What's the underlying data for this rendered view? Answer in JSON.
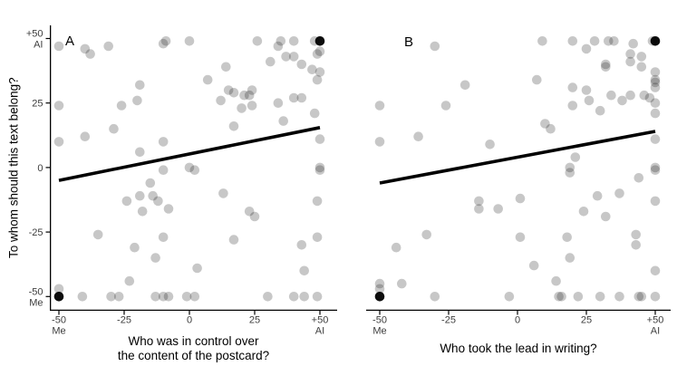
{
  "figure": {
    "background": "#ffffff",
    "text_color": "#000000",
    "tick_label_color": "#3d3d3d"
  },
  "chart_data": [
    {
      "type": "scatter",
      "panel_label": "A",
      "xlabel_lines": [
        "Who was in control over",
        "the content of the postcard?"
      ],
      "ylabel": "To whom should this text belong?",
      "xlim": [
        -55,
        56
      ],
      "ylim": [
        -55,
        56
      ],
      "grid": false,
      "y_axis_line": true,
      "x_ticks": [
        {
          "value": -50,
          "lines": [
            "-50",
            "Me"
          ]
        },
        {
          "value": -25,
          "lines": [
            "-25"
          ]
        },
        {
          "value": 0,
          "lines": [
            "0"
          ]
        },
        {
          "value": 25,
          "lines": [
            "25"
          ]
        },
        {
          "value": 50,
          "lines": [
            "+50",
            "AI"
          ]
        }
      ],
      "y_ticks": [
        {
          "value": 50,
          "lines": [
            "+50",
            "AI"
          ]
        },
        {
          "value": 25,
          "lines": [
            "25"
          ]
        },
        {
          "value": 0,
          "lines": [
            "0"
          ]
        },
        {
          "value": -25,
          "lines": [
            "-25"
          ]
        },
        {
          "value": -50,
          "lines": [
            "-50",
            "Me"
          ]
        }
      ],
      "point_color": "#000000",
      "point_opacity": 0.22,
      "point_radius": 5.3,
      "trend_line": {
        "x1": -50,
        "y1": -5,
        "x2": 50,
        "y2": 15.5,
        "color": "#000000",
        "width": 3.6
      },
      "points": [
        [
          -50,
          47
        ],
        [
          -40,
          46
        ],
        [
          -38,
          44
        ],
        [
          -31,
          47
        ],
        [
          -10,
          48
        ],
        [
          -9,
          49
        ],
        [
          0,
          49
        ],
        [
          26,
          49
        ],
        [
          35,
          49
        ],
        [
          40,
          49
        ],
        [
          48,
          49
        ],
        [
          49,
          44
        ],
        [
          50,
          45
        ],
        [
          34,
          47
        ],
        [
          37,
          43
        ],
        [
          31,
          41
        ],
        [
          40,
          43
        ],
        [
          43,
          40
        ],
        [
          47,
          38
        ],
        [
          50,
          37
        ],
        [
          49,
          34
        ],
        [
          -19,
          32
        ],
        [
          -50,
          24
        ],
        [
          -26,
          24
        ],
        [
          -20,
          26
        ],
        [
          -29,
          15
        ],
        [
          -40,
          12
        ],
        [
          -50,
          10
        ],
        [
          -10,
          10
        ],
        [
          14,
          39
        ],
        [
          7,
          34
        ],
        [
          15,
          30
        ],
        [
          17,
          29
        ],
        [
          12,
          26
        ],
        [
          21,
          28
        ],
        [
          23,
          28
        ],
        [
          24,
          30
        ],
        [
          20,
          23
        ],
        [
          24,
          24
        ],
        [
          40,
          27
        ],
        [
          43,
          27
        ],
        [
          34,
          25
        ],
        [
          48,
          21
        ],
        [
          17,
          16
        ],
        [
          36,
          18
        ],
        [
          -19,
          6
        ],
        [
          -10,
          -1
        ],
        [
          0,
          0
        ],
        [
          2,
          -1
        ],
        [
          50,
          11
        ],
        [
          50,
          0
        ],
        [
          50,
          -1
        ],
        [
          -15,
          -6
        ],
        [
          13,
          -10
        ],
        [
          -14,
          -11
        ],
        [
          -12,
          -13
        ],
        [
          -8,
          -16
        ],
        [
          -24,
          -13
        ],
        [
          -18,
          -17
        ],
        [
          -19,
          -11
        ],
        [
          -35,
          -26
        ],
        [
          -10,
          -27
        ],
        [
          -21,
          -31
        ],
        [
          -13,
          -35
        ],
        [
          49,
          -13
        ],
        [
          23,
          -17
        ],
        [
          25,
          -19
        ],
        [
          17,
          -28
        ],
        [
          49,
          -27
        ],
        [
          43,
          -30
        ],
        [
          3,
          -39
        ],
        [
          44,
          -40
        ],
        [
          -23,
          -44
        ],
        [
          -50,
          -47
        ],
        [
          -41,
          -50
        ],
        [
          -30,
          -50
        ],
        [
          -27,
          -50
        ],
        [
          -13,
          -50
        ],
        [
          -10,
          -50
        ],
        [
          -8,
          -50
        ],
        [
          -1,
          -50
        ],
        [
          2,
          -50
        ],
        [
          30,
          -50
        ],
        [
          40,
          -50
        ],
        [
          44,
          -50
        ],
        [
          49,
          -50
        ]
      ],
      "black_points": [
        [
          -50,
          -50
        ],
        [
          50,
          49
        ]
      ]
    },
    {
      "type": "scatter",
      "panel_label": "B",
      "xlabel_lines": [
        "Who took the lead in writing?"
      ],
      "ylabel": "To whom should this text belong?",
      "xlim": [
        -55,
        56
      ],
      "ylim": [
        -55,
        56
      ],
      "grid": false,
      "y_axis_line": false,
      "x_ticks": [
        {
          "value": -50,
          "lines": [
            "-50",
            "Me"
          ]
        },
        {
          "value": -25,
          "lines": [
            "-25"
          ]
        },
        {
          "value": 0,
          "lines": [
            "0"
          ]
        },
        {
          "value": 25,
          "lines": [
            "25"
          ]
        },
        {
          "value": 50,
          "lines": [
            "+50",
            "AI"
          ]
        }
      ],
      "y_ticks": [],
      "point_color": "#000000",
      "point_opacity": 0.22,
      "point_radius": 5.3,
      "trend_line": {
        "x1": -50,
        "y1": -6,
        "x2": 50,
        "y2": 14,
        "color": "#000000",
        "width": 3.6
      },
      "points": [
        [
          -30,
          47
        ],
        [
          -19,
          32
        ],
        [
          -50,
          24
        ],
        [
          -26,
          24
        ],
        [
          -50,
          10
        ],
        [
          -36,
          12
        ],
        [
          -10,
          9
        ],
        [
          9,
          49
        ],
        [
          20,
          49
        ],
        [
          28,
          49
        ],
        [
          33,
          49
        ],
        [
          35,
          49
        ],
        [
          42,
          48
        ],
        [
          49,
          49
        ],
        [
          25,
          46
        ],
        [
          41,
          44
        ],
        [
          45,
          43
        ],
        [
          41,
          41
        ],
        [
          32,
          40
        ],
        [
          32,
          39
        ],
        [
          45,
          39
        ],
        [
          50,
          37
        ],
        [
          50,
          34
        ],
        [
          7,
          34
        ],
        [
          50,
          33
        ],
        [
          50,
          31
        ],
        [
          20,
          31
        ],
        [
          25,
          30
        ],
        [
          26,
          26
        ],
        [
          34,
          28
        ],
        [
          38,
          26
        ],
        [
          41,
          28
        ],
        [
          46,
          28
        ],
        [
          48,
          27
        ],
        [
          20,
          24
        ],
        [
          30,
          22
        ],
        [
          50,
          25
        ],
        [
          50,
          21
        ],
        [
          10,
          17
        ],
        [
          12,
          15
        ],
        [
          21,
          4
        ],
        [
          19,
          0
        ],
        [
          19,
          -2
        ],
        [
          50,
          11
        ],
        [
          50,
          0
        ],
        [
          50,
          -1
        ],
        [
          44,
          -4
        ],
        [
          1,
          -12
        ],
        [
          29,
          -11
        ],
        [
          37,
          -10
        ],
        [
          50,
          -13
        ],
        [
          24,
          -17
        ],
        [
          32,
          -19
        ],
        [
          -14,
          -13
        ],
        [
          -14,
          -16
        ],
        [
          -7,
          -16
        ],
        [
          1,
          -27
        ],
        [
          18,
          -27
        ],
        [
          43,
          -26
        ],
        [
          43,
          -30
        ],
        [
          -33,
          -26
        ],
        [
          -44,
          -31
        ],
        [
          6,
          -38
        ],
        [
          19,
          -35
        ],
        [
          14,
          -44
        ],
        [
          50,
          -40
        ],
        [
          -42,
          -45
        ],
        [
          -50,
          -45
        ],
        [
          -50,
          -47
        ],
        [
          -30,
          -50
        ],
        [
          -3,
          -50
        ],
        [
          15,
          -50
        ],
        [
          16,
          -50
        ],
        [
          22,
          -50
        ],
        [
          30,
          -50
        ],
        [
          37,
          -50
        ],
        [
          44,
          -50
        ],
        [
          45,
          -50
        ],
        [
          50,
          -50
        ]
      ],
      "black_points": [
        [
          -50,
          -50
        ],
        [
          50,
          49
        ]
      ]
    }
  ]
}
